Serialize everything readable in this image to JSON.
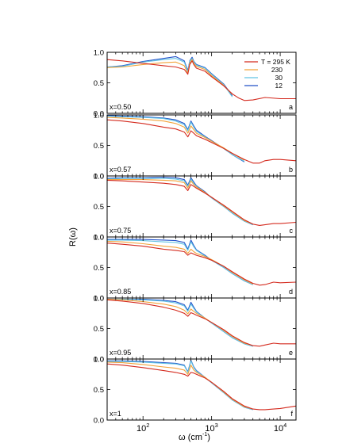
{
  "figure": {
    "ylabel": "R(ω)",
    "xlabel": "ω (cm",
    "xlabel_sup": "-1",
    "xlabel_close": ")",
    "x_scale": "log",
    "x_range": [
      30,
      17000
    ],
    "x_ticks": [
      {
        "value": 100,
        "base": "10",
        "exp": "2"
      },
      {
        "value": 1000,
        "base": "10",
        "exp": "3"
      },
      {
        "value": 10000,
        "base": "10",
        "exp": "4"
      }
    ],
    "y_range": [
      0,
      1
    ],
    "y_ticks": [
      "0.0",
      "0.5",
      "1.0"
    ],
    "y_tick_values": [
      0,
      0.5,
      1.0
    ],
    "grid": false,
    "legend_position": "top-right (panel a)"
  },
  "legend": {
    "title_prefix": "T = ",
    "unit": "K",
    "entries": [
      "295",
      "230",
      "30",
      "12"
    ]
  },
  "colors": {
    "T295": "#d42a1e",
    "T230": "#f2a33a",
    "T30": "#62c3e3",
    "T12": "#2050c8"
  },
  "chart_data": [
    {
      "type": "line",
      "panel": "a",
      "label": "x=0.50",
      "series": [
        {
          "name": "T = 295 K",
          "x": [
            30,
            50,
            100,
            200,
            300,
            400,
            450,
            480,
            520,
            550,
            600,
            800,
            1000,
            1500,
            2000,
            2500,
            3000,
            4000,
            6000,
            10000,
            17000
          ],
          "y": [
            0.88,
            0.86,
            0.82,
            0.78,
            0.76,
            0.72,
            0.64,
            0.8,
            0.86,
            0.8,
            0.74,
            0.69,
            0.6,
            0.45,
            0.32,
            0.25,
            0.21,
            0.22,
            0.26,
            0.24,
            0.24
          ]
        },
        {
          "name": "230",
          "x": [
            30,
            50,
            100,
            200,
            300,
            400,
            450,
            480,
            520,
            550,
            600,
            800,
            1000,
            1500,
            2000
          ],
          "y": [
            0.75,
            0.76,
            0.8,
            0.83,
            0.84,
            0.78,
            0.66,
            0.82,
            0.88,
            0.82,
            0.77,
            0.72,
            0.62,
            0.46,
            0.31
          ]
        },
        {
          "name": "30",
          "x": [
            30,
            50,
            100,
            200,
            300,
            400,
            450,
            480,
            520,
            550,
            600,
            800,
            1000,
            1500,
            2000
          ],
          "y": [
            0.76,
            0.77,
            0.84,
            0.88,
            0.9,
            0.84,
            0.68,
            0.85,
            0.9,
            0.84,
            0.79,
            0.74,
            0.64,
            0.47,
            0.27
          ]
        },
        {
          "name": "12",
          "x": [
            30,
            50,
            100,
            200,
            300,
            400,
            450,
            480,
            520,
            550,
            600,
            800,
            1000,
            1500,
            2000
          ],
          "y": [
            0.76,
            0.78,
            0.85,
            0.9,
            0.93,
            0.86,
            0.7,
            0.86,
            0.92,
            0.85,
            0.8,
            0.75,
            0.65,
            0.48,
            0.29
          ]
        }
      ]
    },
    {
      "type": "line",
      "panel": "b",
      "label": "x=0.57",
      "series": [
        {
          "name": "T = 295 K",
          "x": [
            30,
            50,
            100,
            200,
            300,
            400,
            450,
            500,
            550,
            600,
            800,
            1000,
            1500,
            2000,
            3000,
            4000,
            5000,
            6000,
            8000,
            10000,
            17000
          ],
          "y": [
            0.92,
            0.9,
            0.86,
            0.8,
            0.77,
            0.72,
            0.64,
            0.74,
            0.7,
            0.66,
            0.6,
            0.55,
            0.45,
            0.37,
            0.27,
            0.21,
            0.21,
            0.25,
            0.27,
            0.27,
            0.25
          ]
        },
        {
          "name": "230",
          "x": [
            30,
            50,
            100,
            200,
            300,
            400,
            450,
            500,
            550,
            600,
            800,
            1000,
            1500,
            2000,
            3000
          ],
          "y": [
            0.96,
            0.95,
            0.93,
            0.9,
            0.86,
            0.8,
            0.7,
            0.82,
            0.76,
            0.7,
            0.63,
            0.57,
            0.46,
            0.37,
            0.26
          ]
        },
        {
          "name": "30",
          "x": [
            30,
            50,
            100,
            200,
            300,
            400,
            450,
            500,
            550,
            600,
            800,
            1000,
            1500,
            2000,
            3000
          ],
          "y": [
            0.98,
            0.97,
            0.96,
            0.94,
            0.9,
            0.84,
            0.74,
            0.88,
            0.8,
            0.73,
            0.64,
            0.57,
            0.45,
            0.35,
            0.24
          ]
        },
        {
          "name": "12",
          "x": [
            30,
            50,
            100,
            200,
            300,
            400,
            450,
            500,
            550,
            600,
            800,
            1000,
            1500,
            2000,
            3000
          ],
          "y": [
            0.99,
            0.98,
            0.97,
            0.95,
            0.92,
            0.86,
            0.76,
            0.9,
            0.82,
            0.75,
            0.65,
            0.58,
            0.45,
            0.35,
            0.23
          ]
        }
      ]
    },
    {
      "type": "line",
      "panel": "c",
      "label": "x=0.75",
      "series": [
        {
          "name": "T = 295 K",
          "x": [
            30,
            50,
            100,
            200,
            300,
            400,
            450,
            500,
            550,
            600,
            800,
            1000,
            1500,
            2000,
            3000,
            4000,
            5000,
            6000,
            8000,
            10000,
            17000
          ],
          "y": [
            0.93,
            0.92,
            0.9,
            0.88,
            0.86,
            0.83,
            0.76,
            0.86,
            0.83,
            0.8,
            0.72,
            0.65,
            0.52,
            0.42,
            0.28,
            0.21,
            0.19,
            0.2,
            0.22,
            0.22,
            0.24
          ]
        },
        {
          "name": "230",
          "x": [
            30,
            50,
            100,
            200,
            300,
            400,
            450,
            500,
            550,
            600,
            800,
            1000,
            1500,
            2000,
            3000,
            4000
          ],
          "y": [
            0.94,
            0.94,
            0.94,
            0.93,
            0.92,
            0.89,
            0.8,
            0.92,
            0.86,
            0.82,
            0.73,
            0.65,
            0.51,
            0.41,
            0.27,
            0.21
          ]
        },
        {
          "name": "30",
          "x": [
            30,
            50,
            100,
            200,
            300,
            400,
            450,
            500,
            550,
            600,
            800,
            1000,
            1500,
            2000,
            3000,
            4000
          ],
          "y": [
            0.95,
            0.96,
            0.96,
            0.96,
            0.95,
            0.92,
            0.83,
            0.95,
            0.88,
            0.83,
            0.73,
            0.64,
            0.5,
            0.39,
            0.26,
            0.2
          ]
        },
        {
          "name": "12",
          "x": [
            30,
            50,
            100,
            200,
            300,
            400,
            450,
            500,
            550,
            600,
            800,
            1000,
            1500,
            2000,
            3000,
            4000
          ],
          "y": [
            0.96,
            0.97,
            0.97,
            0.98,
            0.97,
            0.94,
            0.85,
            0.97,
            0.9,
            0.84,
            0.74,
            0.64,
            0.5,
            0.39,
            0.26,
            0.2
          ]
        }
      ]
    },
    {
      "type": "line",
      "panel": "d",
      "label": "x=0.85",
      "series": [
        {
          "name": "T = 295 K",
          "x": [
            30,
            50,
            100,
            200,
            300,
            400,
            450,
            500,
            550,
            600,
            800,
            1000,
            1500,
            2000,
            3000,
            4000,
            5000,
            6000,
            8000,
            10000,
            17000
          ],
          "y": [
            0.9,
            0.88,
            0.85,
            0.8,
            0.78,
            0.76,
            0.7,
            0.74,
            0.72,
            0.7,
            0.66,
            0.62,
            0.52,
            0.43,
            0.31,
            0.24,
            0.21,
            0.22,
            0.26,
            0.25,
            0.26
          ]
        },
        {
          "name": "230",
          "x": [
            30,
            50,
            100,
            200,
            300,
            400,
            450,
            500,
            550,
            600,
            800,
            1000,
            1500,
            2000,
            3000,
            4000
          ],
          "y": [
            0.93,
            0.92,
            0.89,
            0.85,
            0.83,
            0.8,
            0.73,
            0.8,
            0.76,
            0.73,
            0.68,
            0.63,
            0.52,
            0.42,
            0.3,
            0.23
          ]
        },
        {
          "name": "30",
          "x": [
            30,
            50,
            100,
            200,
            300,
            400,
            450,
            500,
            550,
            600,
            800,
            1000,
            1500,
            2000,
            3000,
            4000
          ],
          "y": [
            0.95,
            0.95,
            0.94,
            0.92,
            0.91,
            0.88,
            0.78,
            0.92,
            0.84,
            0.78,
            0.69,
            0.62,
            0.5,
            0.4,
            0.28,
            0.22
          ]
        },
        {
          "name": "12",
          "x": [
            30,
            50,
            100,
            200,
            300,
            400,
            450,
            500,
            550,
            600,
            800,
            1000,
            1500,
            2000,
            3000,
            4000
          ],
          "y": [
            0.96,
            0.96,
            0.96,
            0.95,
            0.94,
            0.91,
            0.8,
            0.95,
            0.86,
            0.79,
            0.7,
            0.62,
            0.5,
            0.4,
            0.28,
            0.22
          ]
        }
      ]
    },
    {
      "type": "line",
      "panel": "e",
      "label": "x=0.95",
      "series": [
        {
          "name": "T = 295 K",
          "x": [
            30,
            50,
            100,
            200,
            300,
            400,
            450,
            500,
            550,
            600,
            800,
            1000,
            1500,
            2000,
            3000,
            4000,
            5000,
            6000,
            8000,
            10000,
            17000
          ],
          "y": [
            0.97,
            0.95,
            0.91,
            0.85,
            0.8,
            0.75,
            0.7,
            0.76,
            0.74,
            0.72,
            0.66,
            0.6,
            0.48,
            0.38,
            0.27,
            0.22,
            0.21,
            0.23,
            0.26,
            0.25,
            0.25
          ]
        },
        {
          "name": "230",
          "x": [
            30,
            50,
            100,
            200,
            300,
            400,
            450,
            500,
            550,
            600,
            800,
            1000,
            1500,
            2000,
            3000,
            4000
          ],
          "y": [
            0.98,
            0.97,
            0.94,
            0.9,
            0.86,
            0.8,
            0.74,
            0.82,
            0.78,
            0.75,
            0.67,
            0.6,
            0.47,
            0.37,
            0.26,
            0.22
          ]
        },
        {
          "name": "30",
          "x": [
            30,
            50,
            100,
            200,
            300,
            400,
            450,
            500,
            550,
            600,
            800,
            1000,
            1500,
            2000,
            3000,
            4000
          ],
          "y": [
            0.98,
            0.98,
            0.97,
            0.95,
            0.92,
            0.87,
            0.78,
            0.9,
            0.83,
            0.77,
            0.67,
            0.59,
            0.45,
            0.35,
            0.25,
            0.21
          ]
        },
        {
          "name": "12",
          "x": [
            30,
            50,
            100,
            200,
            300,
            400,
            450,
            500,
            550,
            600,
            800,
            1000,
            1500,
            2000,
            3000,
            4000
          ],
          "y": [
            0.98,
            0.98,
            0.98,
            0.96,
            0.94,
            0.89,
            0.8,
            0.93,
            0.85,
            0.78,
            0.67,
            0.59,
            0.45,
            0.35,
            0.25,
            0.21
          ]
        }
      ]
    },
    {
      "type": "line",
      "panel": "f",
      "label": "x=1",
      "series": [
        {
          "name": "T = 295 K",
          "x": [
            30,
            50,
            100,
            200,
            300,
            400,
            450,
            500,
            550,
            600,
            800,
            1000,
            1500,
            2000,
            3000,
            4000,
            5000,
            6000,
            8000,
            10000,
            17000
          ],
          "y": [
            0.92,
            0.9,
            0.86,
            0.81,
            0.78,
            0.75,
            0.72,
            0.78,
            0.77,
            0.75,
            0.69,
            0.62,
            0.47,
            0.35,
            0.23,
            0.18,
            0.17,
            0.17,
            0.18,
            0.19,
            0.23
          ]
        },
        {
          "name": "230",
          "x": [
            30,
            50,
            100,
            200,
            300,
            400,
            450,
            500,
            550,
            600,
            800,
            1000,
            1500,
            2000,
            3000,
            4000
          ],
          "y": [
            0.95,
            0.94,
            0.91,
            0.87,
            0.85,
            0.82,
            0.75,
            0.9,
            0.82,
            0.78,
            0.7,
            0.62,
            0.46,
            0.34,
            0.22,
            0.18
          ]
        },
        {
          "name": "30",
          "x": [
            30,
            50,
            100,
            200,
            300,
            400,
            450,
            500,
            550,
            600,
            800,
            1000,
            1500,
            2000,
            3000,
            4000
          ],
          "y": [
            0.96,
            0.96,
            0.95,
            0.93,
            0.92,
            0.89,
            0.78,
            0.97,
            0.86,
            0.8,
            0.7,
            0.61,
            0.45,
            0.33,
            0.21,
            0.17
          ]
        },
        {
          "name": "12",
          "x": [
            30,
            50,
            100,
            200,
            300,
            400,
            450,
            500,
            550,
            600,
            800,
            1000,
            1500,
            2000,
            3000,
            4000
          ],
          "y": [
            0.97,
            0.97,
            0.96,
            0.94,
            0.93,
            0.9,
            0.79,
            0.98,
            0.87,
            0.81,
            0.7,
            0.61,
            0.45,
            0.33,
            0.21,
            0.17
          ]
        }
      ]
    }
  ]
}
